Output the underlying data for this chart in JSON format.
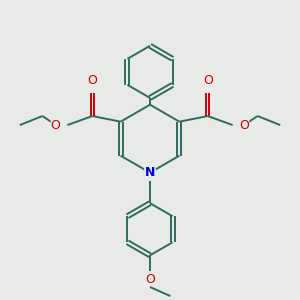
{
  "bg_color": "#e8eae8",
  "bond_color": "#2d6b5e",
  "o_color": "#cc0000",
  "n_color": "#0000cc",
  "lw": 1.4,
  "dbo": 0.018,
  "xlim": [
    -1.3,
    1.3
  ],
  "ylim": [
    -1.35,
    1.25
  ]
}
